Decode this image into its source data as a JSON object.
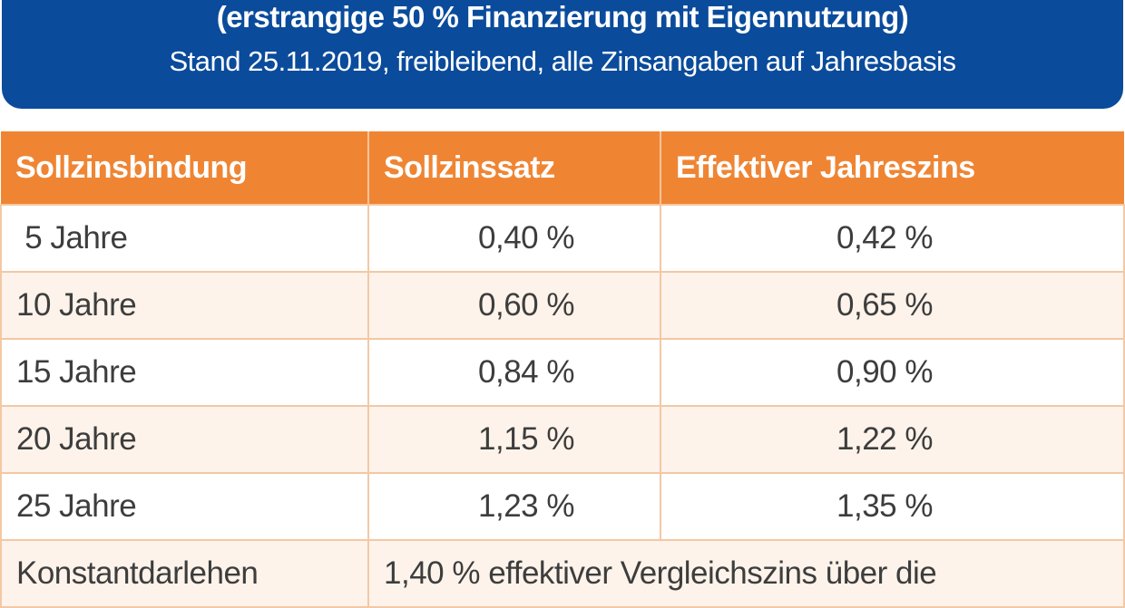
{
  "header": {
    "title": "(erstrangige 50 % Finanzierung mit Eigennutzung)",
    "subtitle": "Stand 25.11.2019, freibleibend, alle Zinsangaben auf Jahresbasis"
  },
  "colors": {
    "banner": "#0a4b9b",
    "table_header": "#ef8533",
    "alt_row": "#fdf3ea"
  },
  "table": {
    "headers": [
      "Sollzinsbindung",
      "Sollzinssatz",
      "Effektiver Jahreszins"
    ],
    "rows": [
      {
        "term": " 5 Jahre",
        "rate": "0,40 %",
        "effective": "0,42 %"
      },
      {
        "term": "10 Jahre",
        "rate": "0,60 %",
        "effective": "0,65 %"
      },
      {
        "term": "15 Jahre",
        "rate": "0,84 %",
        "effective": "0,90 %"
      },
      {
        "term": "20 Jahre",
        "rate": "1,15 %",
        "effective": "1,22 %"
      },
      {
        "term": "25 Jahre",
        "rate": "1,23 %",
        "effective": "1,35 %"
      }
    ],
    "last_row": {
      "term": "Konstantdarlehen",
      "text": "1,40 % effektiver Vergleichszins über die"
    }
  }
}
